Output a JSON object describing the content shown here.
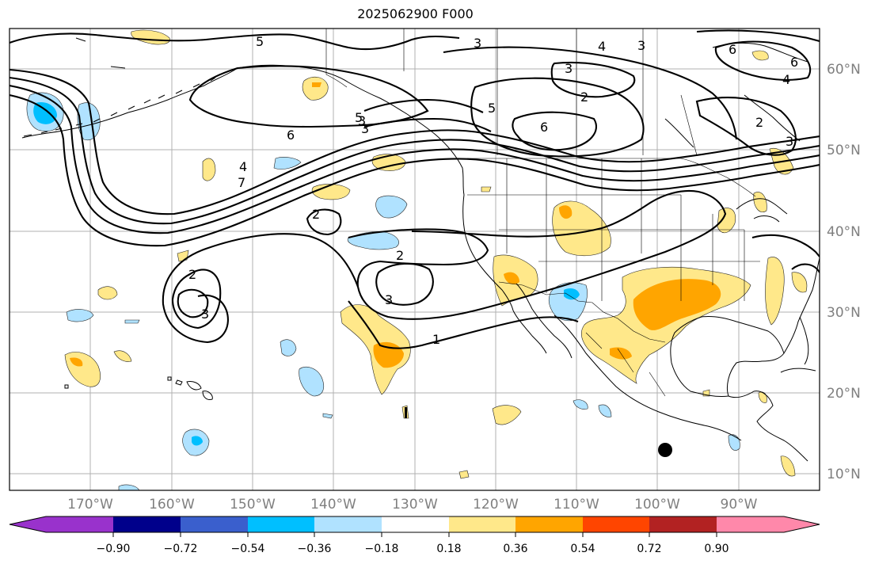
{
  "title": "2025062900 F000",
  "map": {
    "lon_range": [
      -180,
      -80
    ],
    "lat_range": [
      8,
      66
    ],
    "projection": "cylindrical",
    "gridlines": true,
    "lon_labels": [
      "170°W",
      "160°W",
      "150°W",
      "140°W",
      "130°W",
      "120°W",
      "110°W",
      "100°W",
      "90°W"
    ],
    "lat_labels": [
      "10°N",
      "20°N",
      "30°N",
      "40°N",
      "50°N",
      "60°N"
    ],
    "lat_label_side": "right",
    "contour_labels": [
      "5",
      "3",
      "3",
      "4",
      "3",
      "6",
      "2",
      "5",
      "3",
      "6",
      "4",
      "7",
      "5",
      "3",
      "6",
      "2",
      "3",
      "2",
      "3",
      "2",
      "3",
      "1",
      "2",
      "6",
      "4"
    ],
    "marker": {
      "name": "black-dot",
      "lon": -98.2,
      "lat": 13.0
    }
  },
  "colorbar": {
    "tick_labels": [
      "−0.90",
      "−0.72",
      "−0.54",
      "−0.36",
      "−0.18",
      "0.18",
      "0.36",
      "0.54",
      "0.72",
      "0.90"
    ],
    "colors": {
      "under": "#9932cc",
      "b1": "#00008b",
      "b2": "#3a5fcd",
      "b3": "#00bfff",
      "b4": "#b0e2ff",
      "b5": "#ffffff",
      "b6": "#ffe88a",
      "b7": "#ffa500",
      "b8": "#ff4500",
      "b9": "#b22222",
      "over": "#ff88aa"
    }
  }
}
